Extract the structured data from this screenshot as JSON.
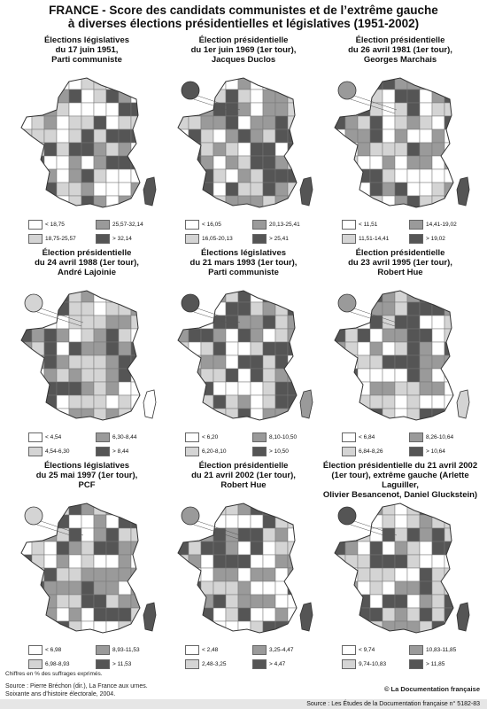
{
  "title_lines": [
    "FRANCE -  Score des candidats communistes et de l’extrême gauche",
    "à diverses élections présidentielles et législatives (1951-2002)"
  ],
  "shade_colors": [
    "#ffffff",
    "#d4d4d4",
    "#9a9a9a",
    "#555555"
  ],
  "maps": [
    {
      "title_lines": [
        "Élections législatives",
        "du 17 juin 1951,",
        "Parti communiste"
      ],
      "legend": [
        "< 18,75",
        "18,75-25,57",
        "25,57-32,14",
        "> 32,14"
      ]
    },
    {
      "title_lines": [
        "Élection présidentielle",
        "du 1er juin 1969 (1er tour),",
        "Jacques Duclos"
      ],
      "legend": [
        "< 16,05",
        "16,05-20,13",
        "20,13-25,41",
        "> 25,41"
      ]
    },
    {
      "title_lines": [
        "Élection présidentielle",
        "du 26 avril 1981 (1er tour),",
        "Georges Marchais"
      ],
      "legend": [
        "< 11,51",
        "11,51-14,41",
        "14,41-19,02",
        "> 19,02"
      ]
    },
    {
      "title_lines": [
        "Élection présidentielle",
        "du 24 avril 1988 (1er tour),",
        "André Lajoinie"
      ],
      "legend": [
        "< 4,54",
        "4,54-6,30",
        "6,30-8,44",
        "> 8,44"
      ]
    },
    {
      "title_lines": [
        "Élections législatives",
        "du 21 mars 1993 (1er tour),",
        "Parti communiste"
      ],
      "legend": [
        "< 6,20",
        "6,20-8,10",
        "8,10-10,50",
        "> 10,50"
      ]
    },
    {
      "title_lines": [
        "Élection présidentielle",
        "du 23 avril 1995 (1er tour),",
        "Robert Hue"
      ],
      "legend": [
        "< 6,84",
        "6,84-8,26",
        "8,26-10,64",
        "> 10,64"
      ]
    },
    {
      "title_lines": [
        "Élections législatives",
        "du 25 mai 1997 (1er tour),",
        "PCF"
      ],
      "legend": [
        "< 6,98",
        "6,98-8,93",
        "8,93-11,53",
        "> 11,53"
      ]
    },
    {
      "title_lines": [
        "Élection présidentielle",
        "du 21 avril 2002 (1er tour),",
        "Robert Hue"
      ],
      "legend": [
        "< 2,48",
        "2,48-3,25",
        "3,25-4,47",
        "> 4,47"
      ]
    },
    {
      "title_lines": [
        "Élection présidentielle du 21 avril 2002",
        "(1er tour), extrême gauche (Arlette Laguiller,",
        "Olivier Besancenot, Daniel Gluckstein)"
      ],
      "legend": [
        "< 9,74",
        "9,74-10,83",
        "10,83-11,85",
        "> 11,85"
      ]
    }
  ],
  "footer": {
    "note": "Chiffres en % des suffrages exprimés.",
    "source_lines": [
      "Source : Pierre Bréchon (dir.), La France aux urnes.",
      "Soixante ans d’histoire électorale, 2004."
    ],
    "copyright": "© La Documentation française",
    "bottom": "Source : Les Études de la Documentation française n° 5182-83"
  }
}
